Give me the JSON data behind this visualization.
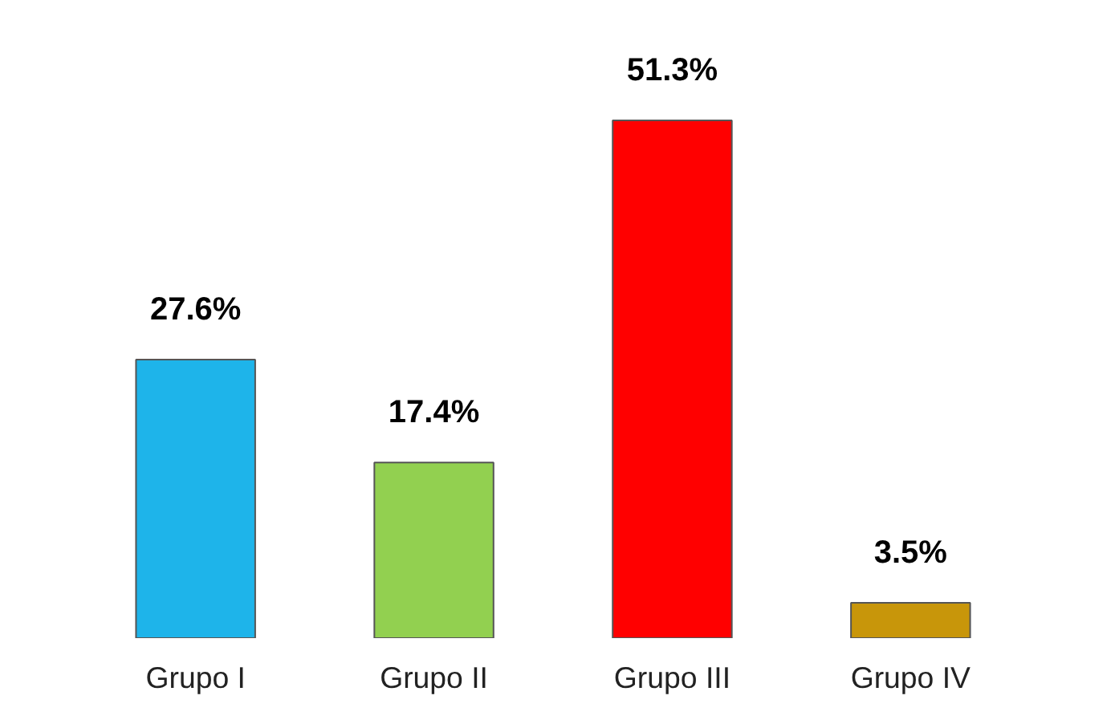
{
  "chart_data": {
    "type": "bar",
    "categories": [
      "Grupo I",
      "Grupo II",
      "Grupo III",
      "Grupo IV"
    ],
    "values": [
      27.6,
      17.4,
      51.3,
      3.5
    ],
    "colors": [
      "#1eb4ea",
      "#92d050",
      "#ff0000",
      "#c8960a"
    ],
    "value_labels": [
      "27.6%",
      "17.4%",
      "51.3%",
      "3.5%"
    ],
    "grid": false
  }
}
